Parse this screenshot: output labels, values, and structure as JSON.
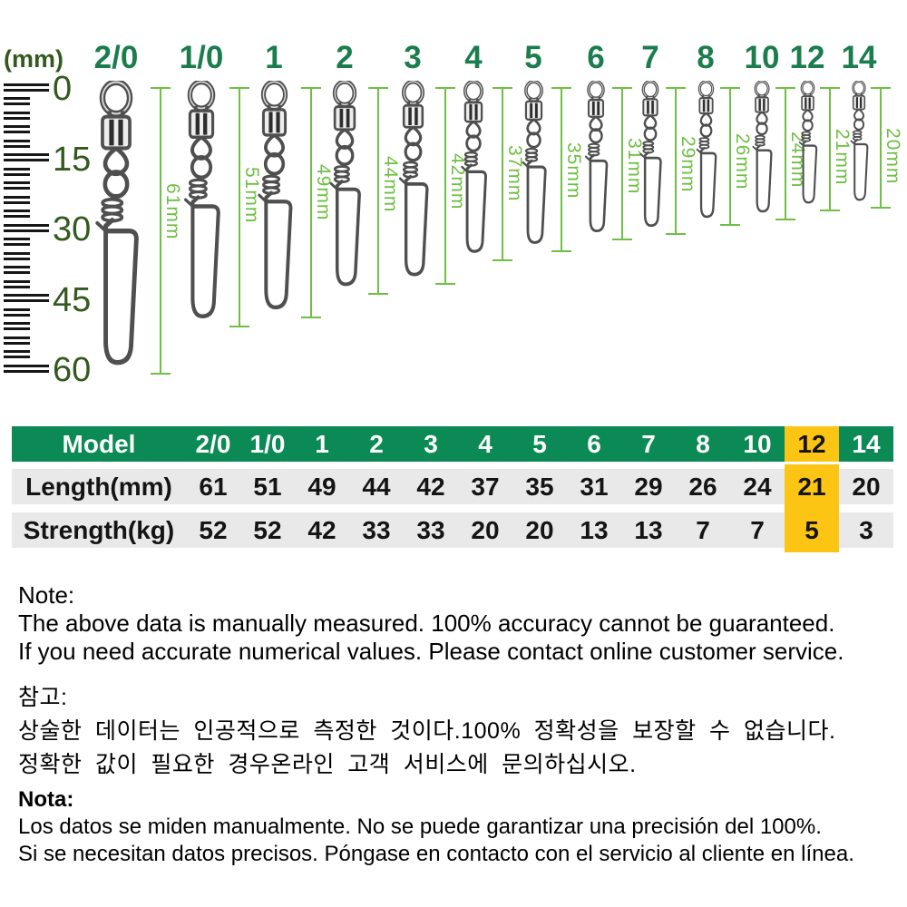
{
  "colors": {
    "size_label_green": "#1b7d4d",
    "ruler_green": "#33591f",
    "measure_light_green": "#6fbf44",
    "table_header_green": "#0c8a55",
    "table_row_gray": "#e9e9e9",
    "highlight_yellow": "#fdc513",
    "text_black": "#141414",
    "metal_gray": "#4f4f4f"
  },
  "ruler": {
    "unit_label": "(mm)",
    "major_tick_labels": [
      "0",
      "15",
      "30",
      "45",
      "60"
    ],
    "major_step_mm": 15,
    "minor_step_mm": 3,
    "max_mm": 60
  },
  "models": [
    {
      "model": "2/0",
      "length_mm": 61,
      "strength_kg": 52,
      "measure_label": "61mm"
    },
    {
      "model": "1/0",
      "length_mm": 51,
      "strength_kg": 52,
      "measure_label": "51mm"
    },
    {
      "model": "1",
      "length_mm": 49,
      "strength_kg": 42,
      "measure_label": "49mm"
    },
    {
      "model": "2",
      "length_mm": 44,
      "strength_kg": 33,
      "measure_label": "44mm"
    },
    {
      "model": "3",
      "length_mm": 42,
      "strength_kg": 33,
      "measure_label": "42mm"
    },
    {
      "model": "4",
      "length_mm": 37,
      "strength_kg": 20,
      "measure_label": "37mm"
    },
    {
      "model": "5",
      "length_mm": 35,
      "strength_kg": 20,
      "measure_label": "35mm"
    },
    {
      "model": "6",
      "length_mm": 31,
      "strength_kg": 13,
      "measure_label": "31mm"
    },
    {
      "model": "7",
      "length_mm": 29,
      "strength_kg": 13,
      "measure_label": "29mm"
    },
    {
      "model": "8",
      "length_mm": 26,
      "strength_kg": 7,
      "measure_label": "26mm"
    },
    {
      "model": "10",
      "length_mm": 24,
      "strength_kg": 7,
      "measure_label": "24mm"
    },
    {
      "model": "12",
      "length_mm": 21,
      "strength_kg": 5,
      "measure_label": "21mm"
    },
    {
      "model": "14",
      "length_mm": 20,
      "strength_kg": 3,
      "measure_label": "20mm"
    }
  ],
  "table": {
    "model_header": "Model",
    "length_row_label": "Length(mm)",
    "strength_row_label": "Strength(kg)",
    "highlighted_model": "12"
  },
  "notes": {
    "en": {
      "title": "Note:",
      "lines": [
        "The above data is manually measured. 100% accuracy cannot be guaranteed.",
        "If you need accurate numerical values. Please contact online customer service."
      ]
    },
    "ko": {
      "title": "참고:",
      "lines": [
        "상술한 데이터는 인공적으로 측정한 것이다.100% 정확성을 보장할 수 없습니다.",
        "정확한 값이 필요한 경우온라인 고객 서비스에 문의하십시오."
      ]
    },
    "es": {
      "title": "Nota:",
      "lines": [
        "Los datos se miden manualmente. No se puede garantizar una precisión del 100%.",
        "Si se necesitan datos precisos. Póngase en contacto con el servicio al cliente en línea."
      ]
    }
  }
}
